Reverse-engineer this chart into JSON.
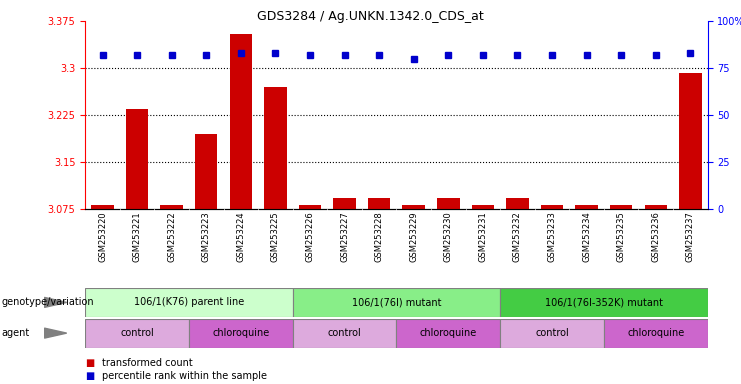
{
  "title": "GDS3284 / Ag.UNKN.1342.0_CDS_at",
  "samples": [
    "GSM253220",
    "GSM253221",
    "GSM253222",
    "GSM253223",
    "GSM253224",
    "GSM253225",
    "GSM253226",
    "GSM253227",
    "GSM253228",
    "GSM253229",
    "GSM253230",
    "GSM253231",
    "GSM253232",
    "GSM253233",
    "GSM253234",
    "GSM253235",
    "GSM253236",
    "GSM253237"
  ],
  "bar_values": [
    3.082,
    3.235,
    3.082,
    3.195,
    3.355,
    3.27,
    3.082,
    3.093,
    3.093,
    3.082,
    3.093,
    3.082,
    3.093,
    3.082,
    3.082,
    3.082,
    3.082,
    3.292
  ],
  "percentile_values": [
    82,
    82,
    82,
    82,
    83,
    83,
    82,
    82,
    82,
    80,
    82,
    82,
    82,
    82,
    82,
    82,
    82,
    83
  ],
  "bar_bottom": 3.075,
  "ylim_left": [
    3.075,
    3.375
  ],
  "ylim_right": [
    0,
    100
  ],
  "yticks_left": [
    3.075,
    3.15,
    3.225,
    3.3,
    3.375
  ],
  "ytick_labels_left": [
    "3.075",
    "3.15",
    "3.225",
    "3.3",
    "3.375"
  ],
  "yticks_right": [
    0,
    25,
    50,
    75,
    100
  ],
  "ytick_labels_right": [
    "0",
    "25",
    "50",
    "75",
    "100%"
  ],
  "bar_color": "#cc0000",
  "dot_color": "#0000cc",
  "bg_plot": "#ffffff",
  "bg_xtick": "#cccccc",
  "bg_figure": "#ffffff",
  "genotype_groups": [
    {
      "label": "106/1(K76) parent line",
      "start": 0,
      "end": 5,
      "color": "#ccffcc"
    },
    {
      "label": "106/1(76I) mutant",
      "start": 6,
      "end": 11,
      "color": "#88ee88"
    },
    {
      "label": "106/1(76I-352K) mutant",
      "start": 12,
      "end": 17,
      "color": "#44cc44"
    }
  ],
  "agent_groups": [
    {
      "label": "control",
      "start": 0,
      "end": 2,
      "color": "#ddaadd"
    },
    {
      "label": "chloroquine",
      "start": 3,
      "end": 5,
      "color": "#cc66cc"
    },
    {
      "label": "control",
      "start": 6,
      "end": 8,
      "color": "#ddaadd"
    },
    {
      "label": "chloroquine",
      "start": 9,
      "end": 11,
      "color": "#cc66cc"
    },
    {
      "label": "control",
      "start": 12,
      "end": 14,
      "color": "#ddaadd"
    },
    {
      "label": "chloroquine",
      "start": 15,
      "end": 17,
      "color": "#cc66cc"
    }
  ],
  "legend_items": [
    {
      "label": "transformed count",
      "color": "#cc0000"
    },
    {
      "label": "percentile rank within the sample",
      "color": "#0000cc"
    }
  ],
  "row_labels": [
    "genotype/variation",
    "agent"
  ],
  "dotted_lines": [
    3.15,
    3.225,
    3.3
  ],
  "n_samples": 18
}
